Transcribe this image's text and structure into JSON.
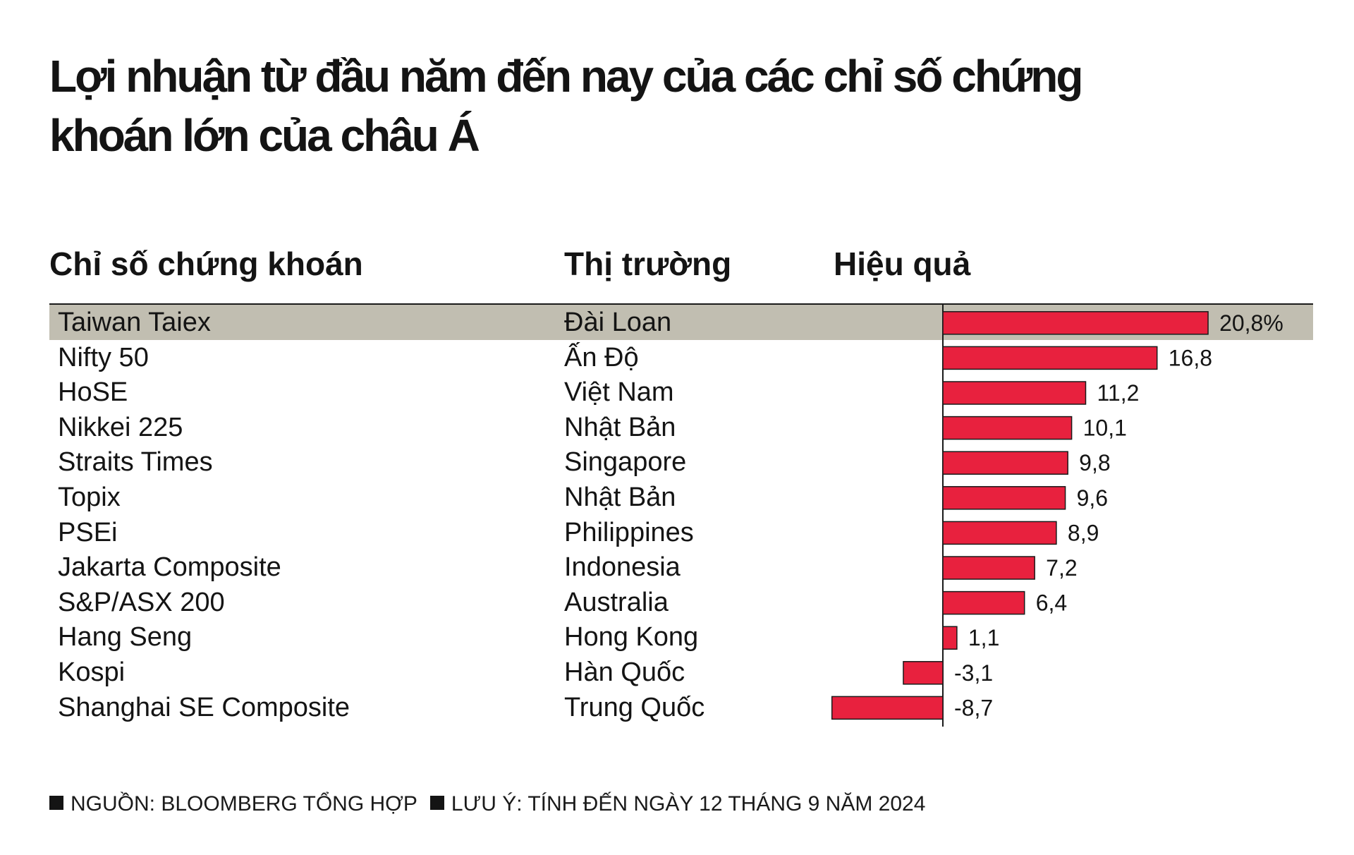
{
  "title": "Lợi nhuận từ đầu năm đến nay của các chỉ số chứng khoán lớn của châu Á",
  "headers": {
    "index": "Chỉ số chứng khoán",
    "market": "Thị trường",
    "performance": "Hiệu quả"
  },
  "rows": [
    {
      "index": "Taiwan Taiex",
      "market": "Đài Loan",
      "value_label": "20,8%",
      "highlight": true
    },
    {
      "index": "Nifty 50",
      "market": "Ấn Độ",
      "value_label": "16,8"
    },
    {
      "index": "HoSE",
      "market": "Việt Nam",
      "value_label": "11,2"
    },
    {
      "index": "Nikkei 225",
      "market": "Nhật Bản",
      "value_label": "10,1"
    },
    {
      "index": "Straits Times",
      "market": "Singapore",
      "value_label": "9,8"
    },
    {
      "index": "Topix",
      "market": "Nhật Bản",
      "value_label": "9,6"
    },
    {
      "index": "PSEi",
      "market": "Philippines",
      "value_label": "8,9"
    },
    {
      "index": "Jakarta Composite",
      "market": "Indonesia",
      "value_label": "7,2"
    },
    {
      "index": "S&P/ASX 200",
      "market": "Australia",
      "value_label": "6,4"
    },
    {
      "index": "Hang Seng",
      "market": "Hong Kong",
      "value_label": "1,1"
    },
    {
      "index": "Kospi",
      "market": "Hàn Quốc",
      "value_label": "-3,1"
    },
    {
      "index": "Shanghai SE Composite",
      "market": "Trung Quốc",
      "value_label": "-8,7"
    }
  ],
  "chart_data": {
    "type": "bar",
    "orientation": "horizontal",
    "categories": [
      "Taiwan Taiex",
      "Nifty 50",
      "HoSE",
      "Nikkei 225",
      "Straits Times",
      "Topix",
      "PSEi",
      "Jakarta Composite",
      "S&P/ASX 200",
      "Hang Seng",
      "Kospi",
      "Shanghai SE Composite"
    ],
    "values": [
      20.8,
      16.8,
      11.2,
      10.1,
      9.8,
      9.6,
      8.9,
      7.2,
      6.4,
      1.1,
      -3.1,
      -8.7
    ],
    "unit": "%",
    "xlim": [
      -8.7,
      20.8
    ],
    "bar_color": "#e8213e",
    "grid": false
  },
  "footer": {
    "source": "NGUỒN: BLOOMBERG TỔNG HỢP",
    "note": "LƯU Ý: TÍNH ĐẾN NGÀY 12 THÁNG 9 NĂM 2024"
  }
}
